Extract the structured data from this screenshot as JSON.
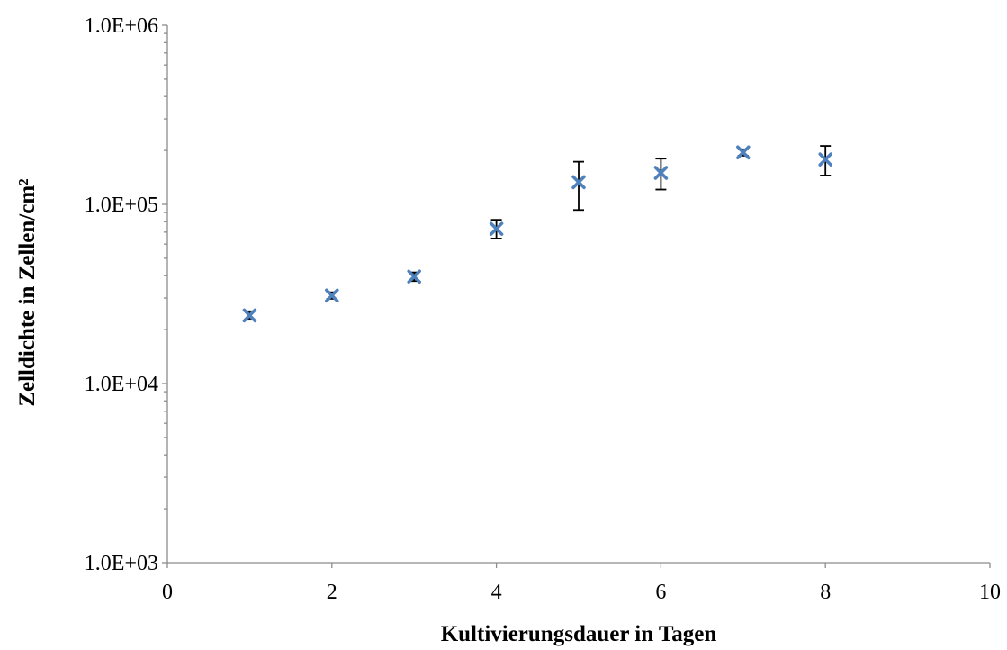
{
  "chart_data": {
    "type": "scatter",
    "title": "",
    "xlabel": "Kultivierungsdauer in Tagen",
    "ylabel": "Zelldichte in Zellen/cm²",
    "xlim": [
      0,
      10
    ],
    "ylim": [
      1000,
      1000000
    ],
    "yscale": "log",
    "x_ticks": [
      0,
      2,
      4,
      6,
      8,
      10
    ],
    "y_ticks": [
      1000,
      10000,
      100000,
      1000000
    ],
    "x_tick_labels": [
      "0",
      "2",
      "4",
      "6",
      "8",
      "10"
    ],
    "y_tick_labels": [
      "1.0E+03",
      "1.0E+04",
      "1.0E+05",
      "1.0E+06"
    ],
    "grid": false,
    "marker": "x",
    "marker_color": "#4f81bd",
    "errorbar_color": "#000000",
    "series": [
      {
        "x": [
          1,
          2,
          3,
          4,
          5,
          6,
          7,
          8
        ],
        "y": [
          24000,
          31000,
          39500,
          73000,
          133000,
          150000,
          195000,
          178000
        ],
        "y_err_low": [
          22700,
          29700,
          37300,
          64500,
          93000,
          121000,
          187000,
          145000
        ],
        "y_err_high": [
          25300,
          32300,
          41700,
          82000,
          173000,
          180000,
          203000,
          212000
        ]
      }
    ]
  }
}
